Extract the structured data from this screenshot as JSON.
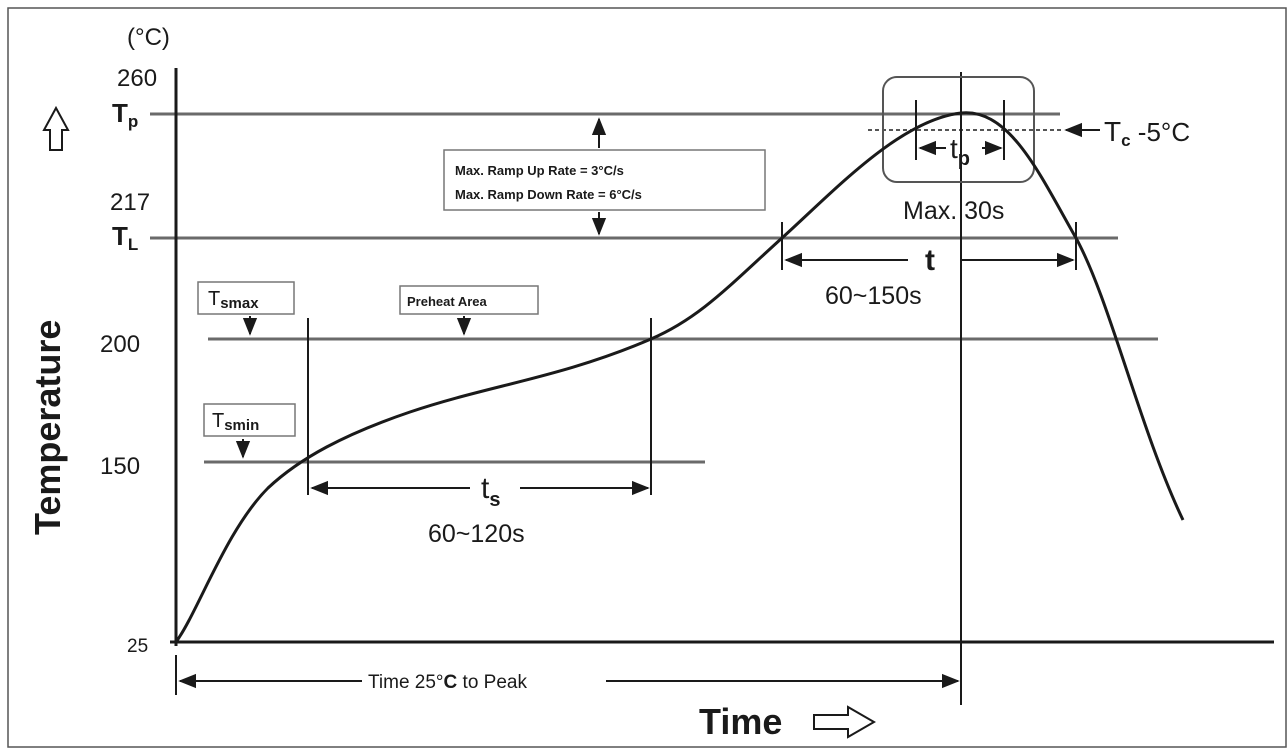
{
  "diagram": {
    "y_unit": "(°C)",
    "y_axis_label": "Temperature",
    "x_axis_label": "Time",
    "ticks": {
      "t260": "260",
      "t217": "217",
      "t200": "200",
      "t150": "150",
      "t25": "25"
    },
    "symbols": {
      "tp_main": "T",
      "tp_sub": "p",
      "tl_main": "T",
      "tl_sub": "L",
      "tsmax_main": "T",
      "tsmax_sub": "smax",
      "tsmin_main": "T",
      "tsmin_sub": "smin",
      "tc_main": "T",
      "tc_sub": "c",
      "tc_suffix": " -5°C"
    },
    "ramp_box": {
      "line1": "Max. Ramp Up Rate = 3°C/s",
      "line2": "Max. Ramp Down Rate = 6°C/s"
    },
    "preheat_label": "Preheat Area",
    "peak_time": {
      "main": "t",
      "sub": "p",
      "limit": "Max. 30s"
    },
    "liquidus_time": {
      "main": "t",
      "range": "60~150s"
    },
    "soak_time": {
      "main": "t",
      "sub": "s",
      "range": "60~120s"
    },
    "time_to_peak": {
      "prefix": "Time 25°",
      "unit": "C",
      "suffix": " to Peak"
    },
    "colors": {
      "line": "#1a1a1a",
      "gray_line": "#6a6a6a",
      "border": "#555555"
    }
  }
}
